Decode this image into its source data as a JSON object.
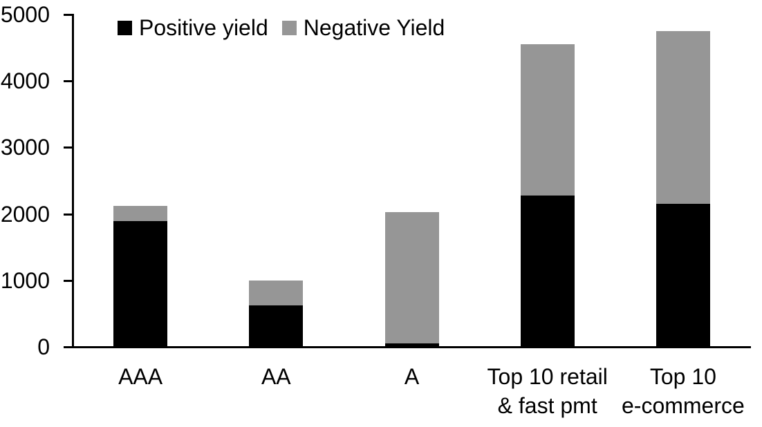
{
  "chart_data": {
    "type": "bar",
    "stacked": true,
    "title": "",
    "categories": [
      "AAA",
      "AA",
      "A",
      "Top 10 retail\n& fast pmt",
      "Top 10\ne-commerce"
    ],
    "series": [
      {
        "name": "Positive yield",
        "color": "#000000",
        "values": [
          1890,
          620,
          50,
          2280,
          2150
        ]
      },
      {
        "name": "Negative Yield",
        "color": "#969696",
        "values": [
          230,
          380,
          1980,
          2270,
          2600
        ]
      }
    ],
    "xlabel": "",
    "ylabel": "",
    "ylim": [
      0,
      5000
    ],
    "yticks": [
      0,
      1000,
      2000,
      3000,
      4000,
      5000
    ],
    "y_tick_labels": [
      "0",
      "1000",
      "2000",
      "3000",
      "4000",
      "5000"
    ],
    "grid": false,
    "legend_position": "top-left",
    "axis_color": "#000000",
    "background_color": "#ffffff"
  }
}
